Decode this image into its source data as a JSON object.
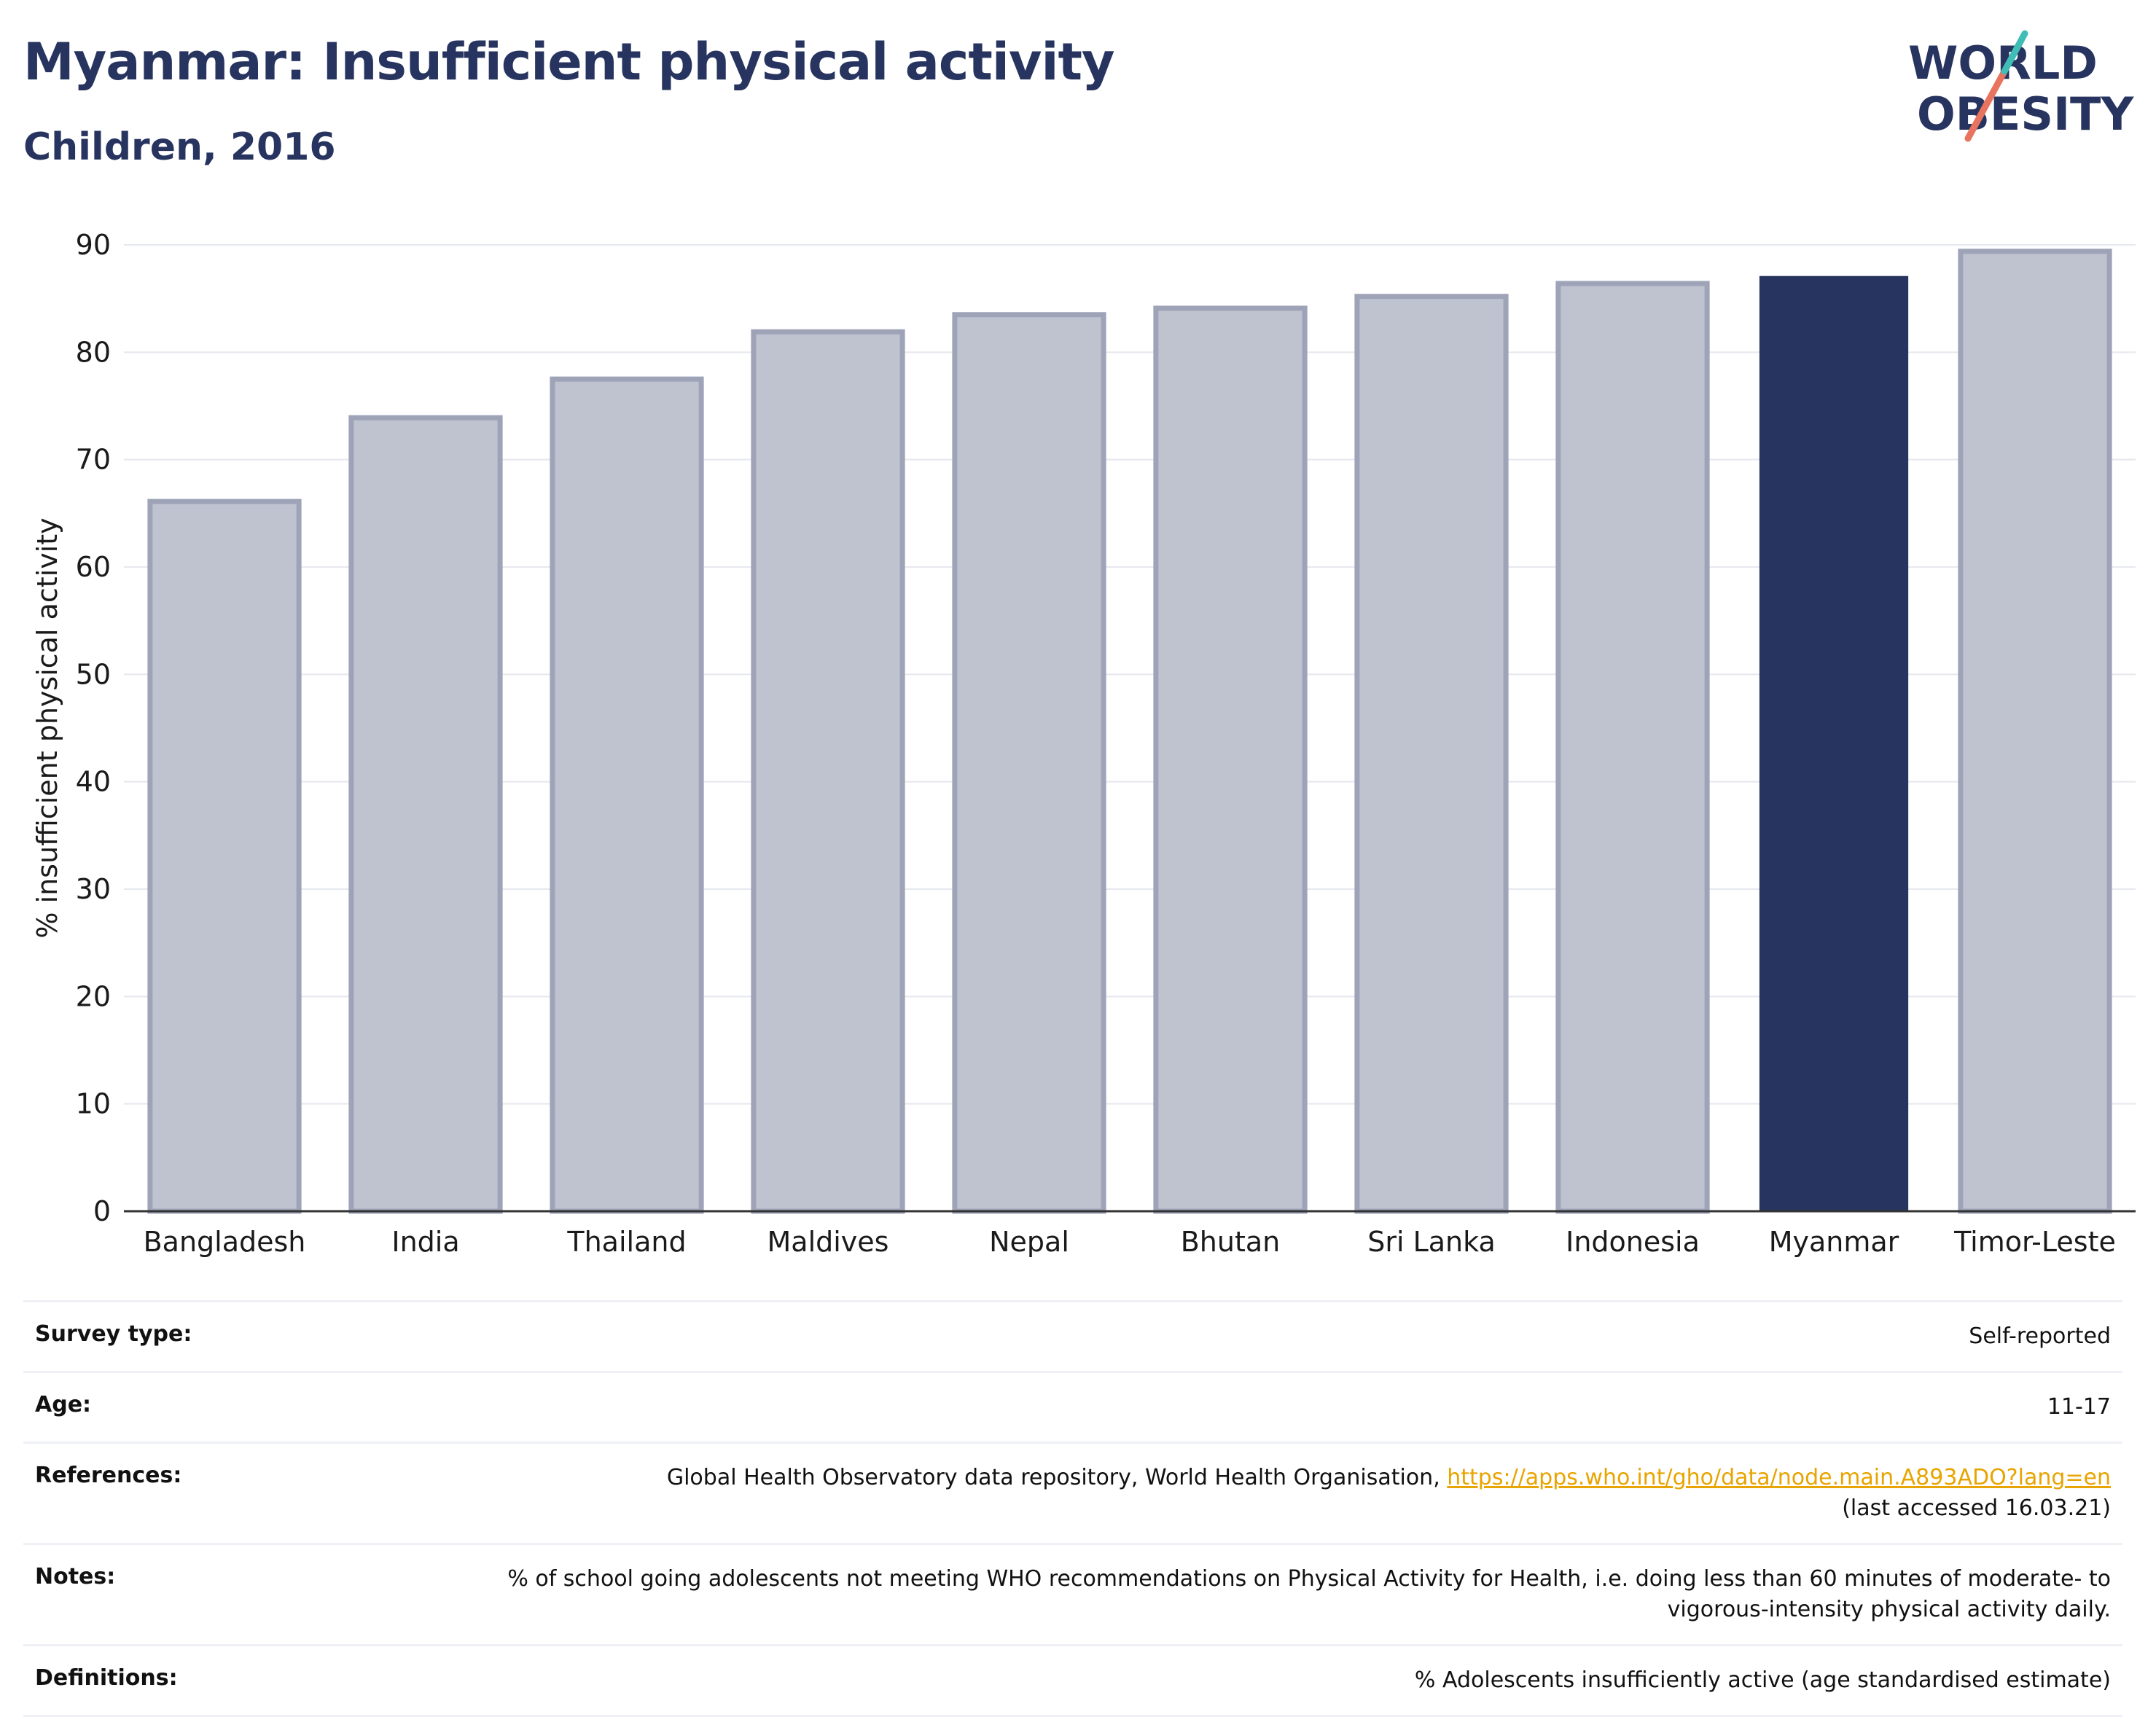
{
  "header": {
    "title": "Myanmar: Insufficient physical activity",
    "subtitle": "Children, 2016"
  },
  "logo": {
    "line1": "WORLD",
    "line2": "OBESITY"
  },
  "colors": {
    "highlight": "#283460",
    "other": "#bfc2cf",
    "other_stroke": "#9ea3b8",
    "title": "#283460",
    "logo_teal": "#3fbdb6",
    "logo_coral": "#e8735f",
    "link": "#e8a400"
  },
  "chart_data": {
    "type": "bar",
    "title": "Myanmar: Insufficient physical activity",
    "subtitle": "Children, 2016",
    "xlabel": "",
    "ylabel": "% insufficient physical activity",
    "ylim": [
      0,
      90
    ],
    "yticks": [
      0,
      10,
      20,
      30,
      40,
      50,
      60,
      70,
      80,
      90
    ],
    "grid": true,
    "categories": [
      "Bangladesh",
      "India",
      "Thailand",
      "Maldives",
      "Nepal",
      "Bhutan",
      "Sri Lanka",
      "Indonesia",
      "Myanmar",
      "Timor-Leste"
    ],
    "values": [
      66.1,
      73.9,
      77.5,
      81.9,
      83.5,
      84.1,
      85.2,
      86.4,
      87.1,
      89.4
    ],
    "highlight": "Myanmar"
  },
  "meta": [
    {
      "key": "Survey type:",
      "value": "Self-reported"
    },
    {
      "key": "Age:",
      "value": "11-17"
    },
    {
      "key": "References:",
      "value": "Global Health Observatory data repository, World Health Organisation, ",
      "link": "https://apps.who.int/gho/data/node.main.A893ADO?lang=en",
      "value2": "(last accessed 16.03.21)"
    },
    {
      "key": "Notes:",
      "value": "% of school going adolescents not meeting WHO recommendations on Physical Activity for Health, i.e. doing less than 60 minutes of moderate- to vigorous-intensity physical activity daily."
    },
    {
      "key": "Definitions:",
      "value": "% Adolescents insufficiently active (age standardised estimate)"
    }
  ]
}
